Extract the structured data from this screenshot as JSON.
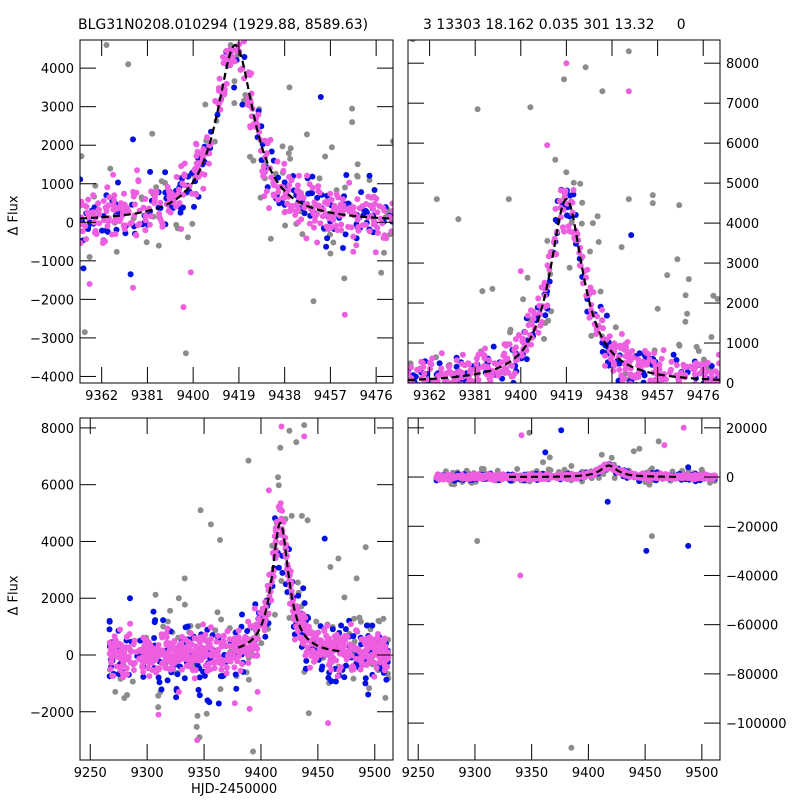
{
  "figure": {
    "title_left": "BLG31N0208.010294 (1929.88, 8589.63)",
    "title_right": "3 13303 18.162 0.035 301 13.32     0",
    "ylabel": "Δ Flux",
    "xlabel": "HJD-2450000"
  },
  "colors": {
    "series_pink": "#ee5ee0",
    "series_blue": "#0010e0",
    "series_gray": "#8c8c8c",
    "model": "#000000"
  },
  "chart_data": [
    {
      "id": "top-left",
      "type": "scatter",
      "title": "BLG31N0208.010294 (1929.88, 8589.63)",
      "xlabel": "",
      "ylabel": "Δ Flux",
      "xlim": [
        9353,
        9483
      ],
      "ylim": [
        -4170,
        4730
      ],
      "xticks": [
        9362,
        9381,
        9400,
        9419,
        9438,
        9457,
        9476
      ],
      "yticks": [
        -4000,
        -3000,
        -2000,
        -1000,
        0,
        1000,
        2000,
        3000,
        4000
      ],
      "y_axis_side": "left",
      "grid": false,
      "model": {
        "t0": 9417.5,
        "peak": 4600,
        "width": 9.5,
        "baseline": 0,
        "style": "dashed"
      },
      "series": [
        {
          "name": "pink",
          "color": "#ee5ee0",
          "scatter": 300,
          "count": 420
        },
        {
          "name": "blue",
          "color": "#0010e0",
          "scatter": 320,
          "count": 160
        },
        {
          "name": "gray",
          "color": "#8c8c8c",
          "scatter": 700,
          "count": 90
        }
      ],
      "outliers": [
        {
          "s": "gray",
          "x": 9364,
          "y": 4600
        },
        {
          "s": "gray",
          "x": 9373,
          "y": 4100
        },
        {
          "s": "gray",
          "x": 9355,
          "y": -2850
        },
        {
          "s": "pink",
          "x": 9357,
          "y": -1600
        },
        {
          "s": "blue",
          "x": 9374,
          "y": -1350
        },
        {
          "s": "pink",
          "x": 9375,
          "y": -1700
        },
        {
          "s": "gray",
          "x": 9357,
          "y": -900
        },
        {
          "s": "gray",
          "x": 9397,
          "y": -3400
        },
        {
          "s": "pink",
          "x": 9396,
          "y": -2200
        },
        {
          "s": "pink",
          "x": 9399,
          "y": -1300
        },
        {
          "s": "gray",
          "x": 9450,
          "y": -2050
        },
        {
          "s": "pink",
          "x": 9463,
          "y": -2400
        },
        {
          "s": "blue",
          "x": 9375,
          "y": 2150
        },
        {
          "s": "gray",
          "x": 9383,
          "y": 2300
        },
        {
          "s": "gray",
          "x": 9440,
          "y": 3500
        },
        {
          "s": "blue",
          "x": 9453,
          "y": 3250
        },
        {
          "s": "gray",
          "x": 9466,
          "y": 2600
        },
        {
          "s": "gray",
          "x": 9466,
          "y": 2950
        },
        {
          "s": "gray",
          "x": 9483,
          "y": 2100
        }
      ]
    },
    {
      "id": "top-right",
      "type": "scatter",
      "title": "3 13303 18.162 0.035 301 13.32     0",
      "xlabel": "",
      "ylabel": "",
      "xlim": [
        9353,
        9483
      ],
      "ylim": [
        0,
        8580
      ],
      "xticks": [
        9362,
        9381,
        9400,
        9419,
        9438,
        9457,
        9476
      ],
      "yticks": [
        0,
        1000,
        2000,
        3000,
        4000,
        5000,
        6000,
        7000,
        8000
      ],
      "y_axis_side": "right",
      "grid": false,
      "model": {
        "t0": 9419,
        "peak": 4600,
        "width": 8.5,
        "baseline": 0,
        "style": "dashed"
      },
      "series": [
        {
          "name": "pink",
          "color": "#ee5ee0",
          "scatter": 250,
          "count": 420
        },
        {
          "name": "blue",
          "color": "#0010e0",
          "scatter": 260,
          "count": 150
        },
        {
          "name": "gray",
          "color": "#8c8c8c",
          "scatter": 900,
          "count": 90
        }
      ],
      "outliers": [
        {
          "s": "pink",
          "x": 9419,
          "y": 8000
        },
        {
          "s": "gray",
          "x": 9427,
          "y": 7900
        },
        {
          "s": "gray",
          "x": 9445,
          "y": 8300
        },
        {
          "s": "gray",
          "x": 9434,
          "y": 7300
        },
        {
          "s": "pink",
          "x": 9445,
          "y": 7300
        },
        {
          "s": "gray",
          "x": 9404,
          "y": 6900
        },
        {
          "s": "pink",
          "x": 9411,
          "y": 5950
        },
        {
          "s": "gray",
          "x": 9418,
          "y": 7600
        },
        {
          "s": "gray",
          "x": 9355,
          "y": 8600
        },
        {
          "s": "gray",
          "x": 9382,
          "y": 6850
        },
        {
          "s": "gray",
          "x": 9365,
          "y": 4600
        },
        {
          "s": "gray",
          "x": 9374,
          "y": 4100
        },
        {
          "s": "gray",
          "x": 9445,
          "y": 4600
        },
        {
          "s": "gray",
          "x": 9455,
          "y": 4700
        },
        {
          "s": "gray",
          "x": 9455,
          "y": 4500
        },
        {
          "s": "gray",
          "x": 9466,
          "y": 4450
        },
        {
          "s": "blue",
          "x": 9446,
          "y": 3700
        },
        {
          "s": "gray",
          "x": 9442,
          "y": 3400
        },
        {
          "s": "gray",
          "x": 9461,
          "y": 2700
        },
        {
          "s": "gray",
          "x": 9470,
          "y": 2600
        },
        {
          "s": "gray",
          "x": 9482,
          "y": 2100
        },
        {
          "s": "gray",
          "x": 9395,
          "y": 4600
        },
        {
          "s": "pink",
          "x": 9400,
          "y": 2800
        },
        {
          "s": "gray",
          "x": 9384,
          "y": 2300
        }
      ]
    },
    {
      "id": "bottom-left",
      "type": "scatter",
      "title": "",
      "xlabel": "HJD-2450000",
      "ylabel": "Δ Flux",
      "xlim": [
        9241,
        9516
      ],
      "ylim": [
        -3700,
        8350
      ],
      "xticks": [
        9250,
        9300,
        9350,
        9400,
        9450,
        9500
      ],
      "yticks": [
        -2000,
        0,
        2000,
        4000,
        6000,
        8000
      ],
      "y_axis_side": "left",
      "grid": false,
      "model": {
        "t0": 9417,
        "peak": 4650,
        "width": 9,
        "baseline": 0,
        "style": "dashed",
        "range": [
          9380,
          9470
        ]
      },
      "series": [
        {
          "name": "pink",
          "color": "#ee5ee0",
          "scatter": 300,
          "count": 700
        },
        {
          "name": "blue",
          "color": "#0010e0",
          "scatter": 500,
          "count": 260
        },
        {
          "name": "gray",
          "color": "#8c8c8c",
          "scatter": 800,
          "count": 130
        }
      ],
      "outliers": [
        {
          "s": "pink",
          "x": 9418,
          "y": 8050
        },
        {
          "s": "gray",
          "x": 9425,
          "y": 7900
        },
        {
          "s": "gray",
          "x": 9438,
          "y": 8100
        },
        {
          "s": "gray",
          "x": 9417,
          "y": 7300
        },
        {
          "s": "gray",
          "x": 9431,
          "y": 7500
        },
        {
          "s": "pink",
          "x": 9438,
          "y": 7700
        },
        {
          "s": "gray",
          "x": 9389,
          "y": 6850
        },
        {
          "s": "gray",
          "x": 9347,
          "y": 5100
        },
        {
          "s": "gray",
          "x": 9356,
          "y": 4600
        },
        {
          "s": "gray",
          "x": 9364,
          "y": 4050
        },
        {
          "s": "pink",
          "x": 9407,
          "y": 5800
        },
        {
          "s": "gray",
          "x": 9333,
          "y": 2700
        },
        {
          "s": "gray",
          "x": 9427,
          "y": 4900
        },
        {
          "s": "gray",
          "x": 9436,
          "y": 4900
        },
        {
          "s": "gray",
          "x": 9441,
          "y": 4750
        },
        {
          "s": "blue",
          "x": 9456,
          "y": 4100
        },
        {
          "s": "gray",
          "x": 9492,
          "y": 3800
        },
        {
          "s": "gray",
          "x": 9461,
          "y": 3100
        },
        {
          "s": "gray",
          "x": 9468,
          "y": 3400
        },
        {
          "s": "gray",
          "x": 9484,
          "y": 2700
        },
        {
          "s": "blue",
          "x": 9267,
          "y": 1200
        },
        {
          "s": "pink",
          "x": 9285,
          "y": 1100
        },
        {
          "s": "gray",
          "x": 9272,
          "y": -1300
        },
        {
          "s": "pink",
          "x": 9310,
          "y": -2100
        },
        {
          "s": "gray",
          "x": 9346,
          "y": -2900
        },
        {
          "s": "pink",
          "x": 9344,
          "y": -3000
        },
        {
          "s": "gray",
          "x": 9393,
          "y": -3400
        },
        {
          "s": "pink",
          "x": 9390,
          "y": -1900
        },
        {
          "s": "pink",
          "x": 9397,
          "y": -1300
        },
        {
          "s": "blue",
          "x": 9353,
          "y": -1600
        },
        {
          "s": "pink",
          "x": 9377,
          "y": -1700
        },
        {
          "s": "gray",
          "x": 9442,
          "y": -2050
        },
        {
          "s": "pink",
          "x": 9459,
          "y": -2400
        },
        {
          "s": "pink",
          "x": 9328,
          "y": -1300
        }
      ]
    },
    {
      "id": "bottom-right",
      "type": "scatter",
      "title": "",
      "xlabel": "",
      "ylabel": "",
      "xlim": [
        9241,
        9516
      ],
      "ylim": [
        -115000,
        24000
      ],
      "xticks": [
        9250,
        9300,
        9350,
        9400,
        9450,
        9500
      ],
      "yticks": [
        -100000,
        -80000,
        -60000,
        -40000,
        -20000,
        0,
        20000
      ],
      "y_axis_side": "right",
      "grid": false,
      "model": {
        "t0": 9418,
        "peak": 4650,
        "width": 9,
        "baseline": 0,
        "style": "dashed",
        "range": [
          9330,
          9480
        ]
      },
      "series": [
        {
          "name": "pink",
          "color": "#ee5ee0",
          "scatter": 400,
          "count": 700
        },
        {
          "name": "blue",
          "color": "#0010e0",
          "scatter": 600,
          "count": 230
        },
        {
          "name": "gray",
          "color": "#8c8c8c",
          "scatter": 1200,
          "count": 120
        }
      ],
      "outliers": [
        {
          "s": "pink",
          "x": 9341,
          "y": 17000
        },
        {
          "s": "gray",
          "x": 9348,
          "y": 18000
        },
        {
          "s": "blue",
          "x": 9376,
          "y": 19000
        },
        {
          "s": "blue",
          "x": 9362,
          "y": 10000
        },
        {
          "s": "gray",
          "x": 9360,
          "y": 6000
        },
        {
          "s": "gray",
          "x": 9366,
          "y": 8000
        },
        {
          "s": "gray",
          "x": 9385,
          "y": 4500
        },
        {
          "s": "gray",
          "x": 9440,
          "y": 10500
        },
        {
          "s": "gray",
          "x": 9445,
          "y": 11500
        },
        {
          "s": "gray",
          "x": 9462,
          "y": 14500
        },
        {
          "s": "pink",
          "x": 9467,
          "y": 13000
        },
        {
          "s": "pink",
          "x": 9484,
          "y": 20000
        },
        {
          "s": "gray",
          "x": 9302,
          "y": -26000
        },
        {
          "s": "pink",
          "x": 9340,
          "y": -40000
        },
        {
          "s": "blue",
          "x": 9417,
          "y": -10000
        },
        {
          "s": "blue",
          "x": 9451,
          "y": -30000
        },
        {
          "s": "gray",
          "x": 9456,
          "y": -24000
        },
        {
          "s": "blue",
          "x": 9488,
          "y": -28000
        },
        {
          "s": "gray",
          "x": 9385,
          "y": -110000
        },
        {
          "s": "blue",
          "x": 9488,
          "y": 4000
        },
        {
          "s": "gray",
          "x": 9500,
          "y": 3000
        }
      ]
    }
  ]
}
